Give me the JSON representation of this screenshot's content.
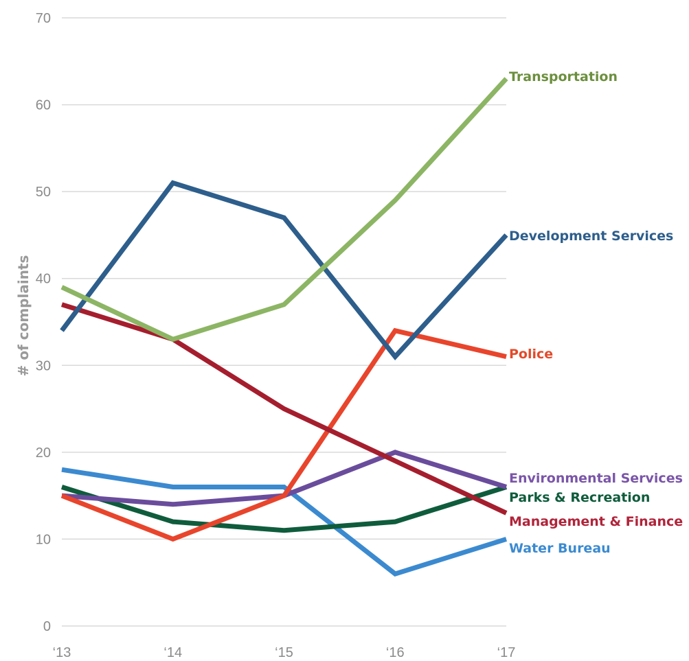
{
  "chart_data": {
    "type": "line",
    "title": "",
    "xlabel": "",
    "ylabel": "# of complaints",
    "categories": [
      "‘13",
      "‘14",
      "‘15",
      "‘16",
      "‘17"
    ],
    "ylim": [
      0,
      70
    ],
    "yticks": [
      0,
      10,
      20,
      30,
      40,
      50,
      60,
      70
    ],
    "grid": true,
    "legend": "direct labels at right end of lines",
    "series": [
      {
        "name": "Transportation",
        "color": "#8cb564",
        "label_color": "#6c8f3e",
        "values": [
          39,
          33,
          37,
          49,
          63
        ]
      },
      {
        "name": "Development Services",
        "color": "#2d5e8c",
        "label_color": "#2d5e8c",
        "values": [
          34,
          51,
          47,
          31,
          45
        ]
      },
      {
        "name": "Police",
        "color": "#e8452c",
        "label_color": "#e34a2a",
        "values": [
          15,
          10,
          15,
          34,
          31
        ]
      },
      {
        "name": "Environmental Services",
        "color": "#6a4c9c",
        "label_color": "#7a55a8",
        "values": [
          15,
          14,
          15,
          20,
          16
        ]
      },
      {
        "name": "Parks & Recreation",
        "color": "#0f5c3c",
        "label_color": "#0f5c3c",
        "values": [
          16,
          12,
          11,
          12,
          16
        ]
      },
      {
        "name": "Management & Finance",
        "color": "#a51e2e",
        "label_color": "#b0243a",
        "values": [
          37,
          33,
          25,
          19,
          13
        ]
      },
      {
        "name": "Water Bureau",
        "color": "#3b8ad0",
        "label_color": "#3b8ad0",
        "values": [
          18,
          16,
          16,
          6,
          10
        ]
      }
    ]
  }
}
